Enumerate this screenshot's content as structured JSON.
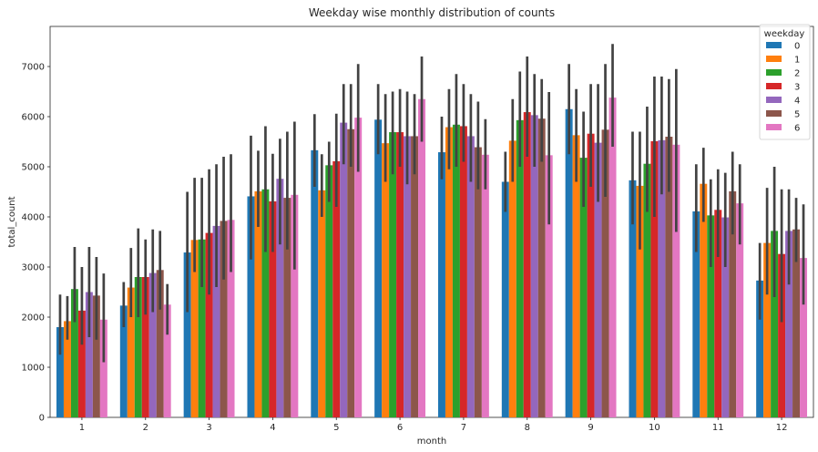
{
  "chart_data": {
    "type": "bar",
    "title": "Weekday wise monthly distribution of counts",
    "xlabel": "month",
    "ylabel": "total_count",
    "categories": [
      "1",
      "2",
      "3",
      "4",
      "5",
      "6",
      "7",
      "8",
      "9",
      "10",
      "11",
      "12"
    ],
    "ylim": [
      0,
      7800
    ],
    "yticks": [
      0,
      1000,
      2000,
      3000,
      4000,
      5000,
      6000,
      7000
    ],
    "grid": false,
    "legend": {
      "title": "weekday",
      "placement": "top-right"
    },
    "series": [
      {
        "name": "0",
        "color": "#1f77b4",
        "values": [
          1800,
          2230,
          3290,
          4410,
          5330,
          5940,
          5290,
          4700,
          6150,
          4730,
          4110,
          2730
        ],
        "ci": [
          [
            1250,
            2450
          ],
          [
            1800,
            2700
          ],
          [
            2100,
            4500
          ],
          [
            3150,
            5620
          ],
          [
            4600,
            6050
          ],
          [
            5250,
            6650
          ],
          [
            4750,
            6000
          ],
          [
            4100,
            5300
          ],
          [
            5250,
            7050
          ],
          [
            3850,
            5700
          ],
          [
            3300,
            5050
          ],
          [
            1950,
            3480
          ]
        ]
      },
      {
        "name": "1",
        "color": "#ff7f0e",
        "values": [
          1920,
          2590,
          3540,
          4510,
          4530,
          5470,
          5790,
          5520,
          5630,
          4620,
          4660,
          3480
        ],
        "ci": [
          [
            1550,
            2420
          ],
          [
            2000,
            3380
          ],
          [
            2900,
            4780
          ],
          [
            3800,
            5320
          ],
          [
            4000,
            5250
          ],
          [
            4700,
            6450
          ],
          [
            4950,
            6550
          ],
          [
            4700,
            6350
          ],
          [
            4700,
            6550
          ],
          [
            3350,
            5700
          ],
          [
            3900,
            5380
          ],
          [
            2450,
            4580
          ]
        ]
      },
      {
        "name": "2",
        "color": "#2ca02c",
        "values": [
          2560,
          2800,
          3550,
          4550,
          5030,
          5690,
          5840,
          5930,
          5180,
          5060,
          4030,
          3720
        ],
        "ci": [
          [
            1900,
            3400
          ],
          [
            2000,
            3770
          ],
          [
            2600,
            4780
          ],
          [
            3300,
            5810
          ],
          [
            4300,
            5500
          ],
          [
            4850,
            6500
          ],
          [
            5000,
            6850
          ],
          [
            5000,
            6900
          ],
          [
            4200,
            6100
          ],
          [
            4100,
            6200
          ],
          [
            3000,
            4750
          ],
          [
            2400,
            5000
          ]
        ]
      },
      {
        "name": "3",
        "color": "#d62728",
        "values": [
          2130,
          2800,
          3680,
          4310,
          5110,
          5690,
          5810,
          6090,
          5660,
          5510,
          4140,
          3260
        ],
        "ci": [
          [
            1450,
            3000
          ],
          [
            2050,
            3550
          ],
          [
            2450,
            4950
          ],
          [
            3300,
            5260
          ],
          [
            4200,
            6060
          ],
          [
            5000,
            6550
          ],
          [
            5100,
            6650
          ],
          [
            5200,
            7200
          ],
          [
            4600,
            6650
          ],
          [
            4000,
            6800
          ],
          [
            3200,
            4950
          ],
          [
            1900,
            4550
          ]
        ]
      },
      {
        "name": "4",
        "color": "#9467bd",
        "values": [
          2500,
          2880,
          3820,
          4760,
          5880,
          5610,
          5610,
          6030,
          5480,
          5530,
          3990,
          3720
        ],
        "ci": [
          [
            1600,
            3400
          ],
          [
            2100,
            3750
          ],
          [
            2600,
            5050
          ],
          [
            3450,
            5560
          ],
          [
            5050,
            6650
          ],
          [
            4650,
            6500
          ],
          [
            4700,
            6450
          ],
          [
            5000,
            6850
          ],
          [
            4300,
            6650
          ],
          [
            4450,
            6800
          ],
          [
            3000,
            4880
          ],
          [
            2650,
            4550
          ]
        ]
      },
      {
        "name": "5",
        "color": "#8c564b",
        "values": [
          2430,
          2940,
          3920,
          4380,
          5750,
          5610,
          5390,
          5960,
          5740,
          5600,
          4510,
          3750
        ],
        "ci": [
          [
            1550,
            3200
          ],
          [
            2150,
            3720
          ],
          [
            2750,
            5200
          ],
          [
            3350,
            5700
          ],
          [
            5000,
            6650
          ],
          [
            4850,
            6450
          ],
          [
            4550,
            6300
          ],
          [
            5100,
            6750
          ],
          [
            4400,
            7050
          ],
          [
            4500,
            6750
          ],
          [
            3650,
            5300
          ],
          [
            3100,
            4380
          ]
        ]
      },
      {
        "name": "6",
        "color": "#e377c2",
        "values": [
          1950,
          2250,
          3940,
          4440,
          5980,
          6350,
          5240,
          5230,
          6380,
          5440,
          4270,
          3180
        ],
        "ci": [
          [
            1100,
            2870
          ],
          [
            1650,
            2660
          ],
          [
            2900,
            5250
          ],
          [
            2950,
            5900
          ],
          [
            4900,
            7050
          ],
          [
            5500,
            7200
          ],
          [
            4550,
            5950
          ],
          [
            3850,
            6490
          ],
          [
            5400,
            7450
          ],
          [
            3700,
            6950
          ],
          [
            3450,
            5050
          ],
          [
            2250,
            4250
          ]
        ]
      }
    ]
  }
}
